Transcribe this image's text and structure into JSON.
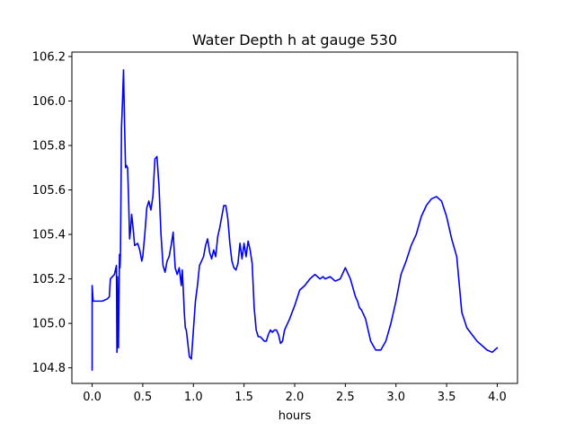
{
  "chart_data": {
    "type": "line",
    "title": "Water Depth h at gauge 530",
    "xlabel": "hours",
    "ylabel": "",
    "xlim": [
      -0.2,
      4.2
    ],
    "ylim": [
      104.73,
      106.22
    ],
    "xticks": [
      0.0,
      0.5,
      1.0,
      1.5,
      2.0,
      2.5,
      3.0,
      3.5,
      4.0
    ],
    "xtick_labels": [
      "0.0",
      "0.5",
      "1.0",
      "1.5",
      "2.0",
      "2.5",
      "3.0",
      "3.5",
      "4.0"
    ],
    "yticks": [
      104.8,
      105.0,
      105.2,
      105.4,
      105.6,
      105.8,
      106.0,
      106.2
    ],
    "ytick_labels": [
      "104.8",
      "105.0",
      "105.2",
      "105.4",
      "105.6",
      "105.8",
      "106.0",
      "106.2"
    ],
    "grid": false,
    "series": [
      {
        "color": "#0000ff",
        "x": [
          0.0,
          0.0,
          0.01,
          0.05,
          0.1,
          0.15,
          0.17,
          0.18,
          0.22,
          0.24,
          0.245,
          0.25,
          0.26,
          0.27,
          0.275,
          0.28,
          0.29,
          0.3,
          0.31,
          0.32,
          0.33,
          0.34,
          0.35,
          0.36,
          0.37,
          0.38,
          0.39,
          0.4,
          0.42,
          0.45,
          0.47,
          0.49,
          0.5,
          0.52,
          0.54,
          0.56,
          0.58,
          0.6,
          0.62,
          0.64,
          0.66,
          0.68,
          0.7,
          0.72,
          0.74,
          0.76,
          0.78,
          0.8,
          0.82,
          0.84,
          0.86,
          0.88,
          0.89,
          0.9,
          0.91,
          0.92,
          0.93,
          0.94,
          0.96,
          0.98,
          1.0,
          1.02,
          1.04,
          1.06,
          1.08,
          1.1,
          1.12,
          1.14,
          1.16,
          1.18,
          1.2,
          1.22,
          1.24,
          1.26,
          1.28,
          1.3,
          1.32,
          1.34,
          1.36,
          1.38,
          1.4,
          1.42,
          1.44,
          1.46,
          1.48,
          1.5,
          1.52,
          1.54,
          1.56,
          1.58,
          1.6,
          1.62,
          1.64,
          1.66,
          1.68,
          1.7,
          1.72,
          1.74,
          1.76,
          1.78,
          1.8,
          1.82,
          1.84,
          1.86,
          1.88,
          1.9,
          1.95,
          2.0,
          2.05,
          2.1,
          2.15,
          2.2,
          2.25,
          2.28,
          2.3,
          2.35,
          2.4,
          2.45,
          2.5,
          2.55,
          2.6,
          2.62,
          2.64,
          2.66,
          2.7,
          2.72,
          2.75,
          2.8,
          2.85,
          2.9,
          2.95,
          3.0,
          3.05,
          3.1,
          3.15,
          3.2,
          3.25,
          3.3,
          3.35,
          3.4,
          3.45,
          3.5,
          3.55,
          3.6,
          3.62,
          3.65,
          3.7,
          3.75,
          3.8,
          3.85,
          3.9,
          3.95,
          4.0
        ],
        "y": [
          104.79,
          105.17,
          105.1,
          105.1,
          105.1,
          105.11,
          105.12,
          105.2,
          105.22,
          105.26,
          104.87,
          105.21,
          104.89,
          105.31,
          105.25,
          105.32,
          105.88,
          106.0,
          106.14,
          105.9,
          105.7,
          105.71,
          105.7,
          105.56,
          105.38,
          105.42,
          105.49,
          105.45,
          105.35,
          105.36,
          105.33,
          105.28,
          105.3,
          105.4,
          105.52,
          105.55,
          105.51,
          105.57,
          105.74,
          105.75,
          105.62,
          105.4,
          105.26,
          105.23,
          105.28,
          105.3,
          105.35,
          105.41,
          105.25,
          105.22,
          105.25,
          105.17,
          105.24,
          105.15,
          105.05,
          104.98,
          104.97,
          104.93,
          104.85,
          104.84,
          104.97,
          105.1,
          105.17,
          105.26,
          105.28,
          105.3,
          105.35,
          105.38,
          105.32,
          105.29,
          105.33,
          105.3,
          105.39,
          105.43,
          105.48,
          105.53,
          105.53,
          105.47,
          105.36,
          105.28,
          105.25,
          105.24,
          105.27,
          105.36,
          105.29,
          105.36,
          105.3,
          105.37,
          105.33,
          105.27,
          105.07,
          104.97,
          104.94,
          104.94,
          104.93,
          104.92,
          104.92,
          104.95,
          104.97,
          104.96,
          104.97,
          104.97,
          104.95,
          104.91,
          104.92,
          104.97,
          105.02,
          105.08,
          105.15,
          105.17,
          105.2,
          105.22,
          105.2,
          105.21,
          105.2,
          105.21,
          105.19,
          105.2,
          105.25,
          105.2,
          105.12,
          105.1,
          105.07,
          105.06,
          105.02,
          104.98,
          104.92,
          104.88,
          104.88,
          104.92,
          105.0,
          105.1,
          105.22,
          105.28,
          105.35,
          105.4,
          105.48,
          105.53,
          105.56,
          105.57,
          105.55,
          105.48,
          105.38,
          105.3,
          105.2,
          105.05,
          104.98,
          104.95,
          104.92,
          104.9,
          104.88,
          104.87,
          104.89
        ]
      }
    ]
  }
}
